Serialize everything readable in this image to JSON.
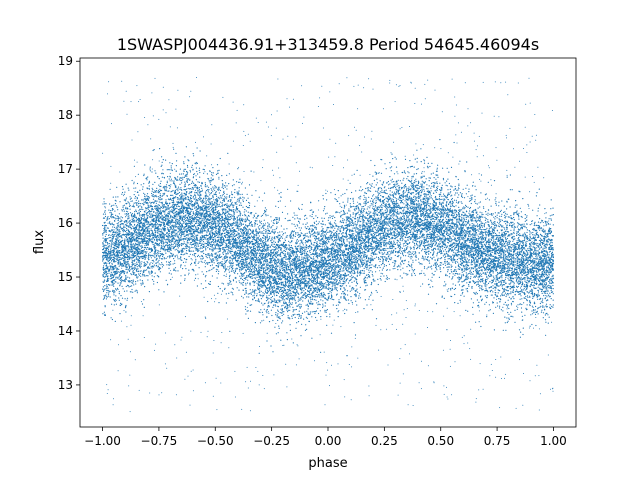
{
  "chart_data": {
    "type": "scatter",
    "title": "1SWASPJ004436.91+313459.8 Period 54645.46094s",
    "xlabel": "phase",
    "ylabel": "flux",
    "xlim": [
      -1.1,
      1.1
    ],
    "ylim": [
      12.22,
      19.06
    ],
    "x_ticks": [
      -1.0,
      -0.75,
      -0.5,
      -0.25,
      0.0,
      0.25,
      0.5,
      0.75,
      1.0
    ],
    "x_tick_labels": [
      "−1.00",
      "−0.75",
      "−0.50",
      "−0.25",
      "0.00",
      "0.25",
      "0.50",
      "0.75",
      "1.00"
    ],
    "y_ticks": [
      13,
      14,
      15,
      16,
      17,
      18,
      19
    ],
    "y_tick_labels": [
      "13",
      "14",
      "15",
      "16",
      "17",
      "18",
      "19"
    ],
    "grid": false,
    "legend": "none",
    "marker_color": "#1f77b4",
    "series": [
      {
        "x": [
          -1.0,
          -0.9,
          -0.8,
          -0.7,
          -0.6,
          -0.5,
          -0.4,
          -0.3,
          -0.2,
          -0.1,
          0.0,
          0.1,
          0.2,
          0.3,
          0.4,
          0.5,
          0.6,
          0.7,
          0.8,
          0.9,
          1.0
        ],
        "y": [
          15.3,
          15.55,
          15.85,
          16.05,
          16.1,
          15.95,
          15.65,
          15.3,
          15.1,
          15.15,
          15.3,
          15.5,
          15.8,
          16.05,
          16.1,
          15.95,
          15.7,
          15.45,
          15.3,
          15.25,
          15.25
        ],
        "scatter_sd": 0.45,
        "y_min": 12.5,
        "y_max": 18.7
      }
    ]
  }
}
